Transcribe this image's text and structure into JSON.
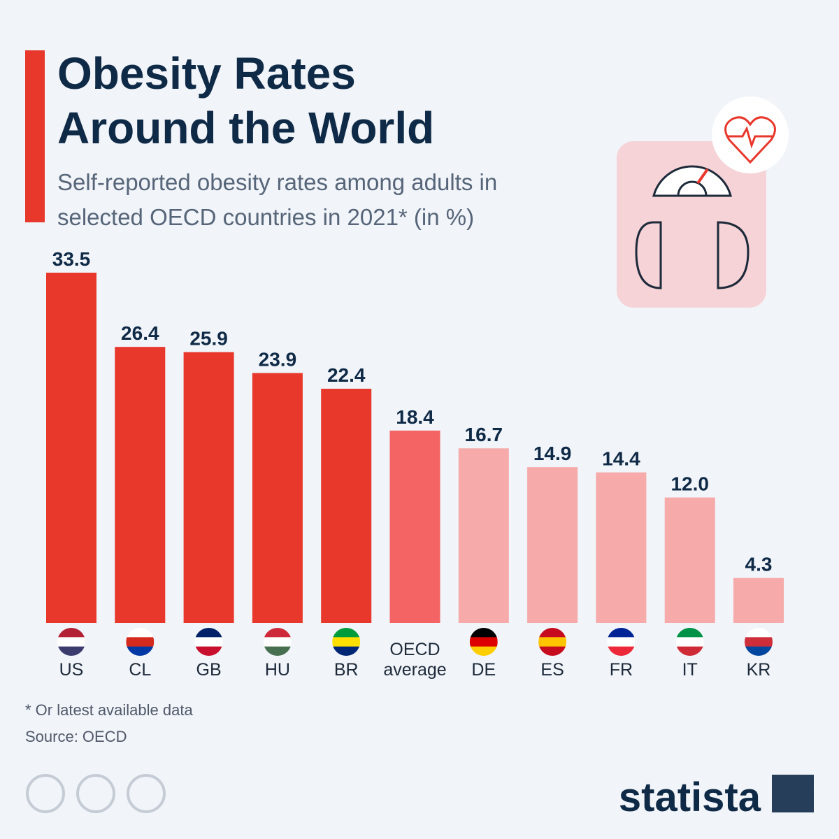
{
  "chart_data": {
    "type": "bar",
    "title": "Obesity Rates Around the World",
    "subtitle": "Self-reported obesity rates among adults in selected OECD countries in 2021* (in %)",
    "categories": [
      "US",
      "CL",
      "GB",
      "HU",
      "BR",
      "OECD average",
      "DE",
      "ES",
      "FR",
      "IT",
      "KR"
    ],
    "values": [
      33.5,
      26.4,
      25.9,
      23.9,
      22.4,
      18.4,
      16.7,
      14.9,
      14.4,
      12.0,
      4.3
    ],
    "value_labels": [
      "33.5",
      "26.4",
      "25.9",
      "23.9",
      "22.4",
      "18.4",
      "16.7",
      "14.9",
      "14.4",
      "12.0",
      "4.3"
    ],
    "colors": [
      "#e8372b",
      "#e8372b",
      "#e8372b",
      "#e8372b",
      "#e8372b",
      "#f46464",
      "#f6aaaa",
      "#f6aaaa",
      "#f6aaaa",
      "#f6aaaa",
      "#f6aaaa"
    ],
    "footnote": "* Or latest available data",
    "source": "Source: OECD",
    "brand": "statista"
  }
}
